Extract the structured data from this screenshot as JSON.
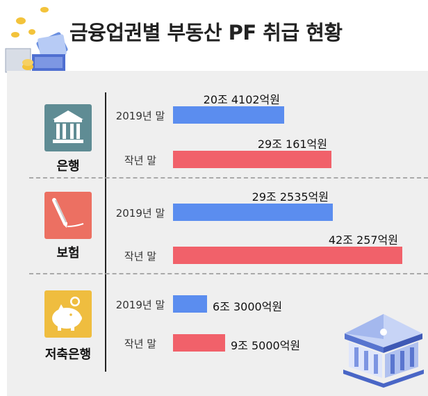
{
  "title": "금융업권별 부동산 PF 취급 현황",
  "colors": {
    "series_2019": "#5b8def",
    "series_last": "#f1616a",
    "panel": "#efefef"
  },
  "icons": [
    "bank-icon",
    "pencil-icon",
    "piggy-bank-icon"
  ],
  "groups": [
    {
      "category": "은행",
      "rows": [
        {
          "period": "2019년 말",
          "value_label": "20조 4102억원",
          "value": 20.4102,
          "series": "2019"
        },
        {
          "period": "작년 말",
          "value_label": "29조 161억원",
          "value": 29.0161,
          "series": "last"
        }
      ]
    },
    {
      "category": "보험",
      "rows": [
        {
          "period": "2019년 말",
          "value_label": "29조 2535억원",
          "value": 29.2535,
          "series": "2019"
        },
        {
          "period": "작년 말",
          "value_label": "42조 257억원",
          "value": 42.0257,
          "series": "last"
        }
      ]
    },
    {
      "category": "저축은행",
      "rows": [
        {
          "period": "2019년 말",
          "value_label": "6조 3000억원",
          "value": 6.3,
          "series": "2019"
        },
        {
          "period": "작년 말",
          "value_label": "9조 5000억원",
          "value": 9.5,
          "series": "last"
        }
      ]
    }
  ],
  "chart_data": {
    "type": "bar",
    "orientation": "horizontal",
    "title": "금융업권별 부동산 PF 취급 현황",
    "categories": [
      "은행",
      "보험",
      "저축은행"
    ],
    "series": [
      {
        "name": "2019년 말",
        "values": [
          20.4102,
          29.2535,
          6.3
        ],
        "labels": [
          "20조 4102억원",
          "29조 2535억원",
          "6조 3000억원"
        ]
      },
      {
        "name": "작년 말",
        "values": [
          29.0161,
          42.0257,
          9.5
        ],
        "labels": [
          "29조 161억원",
          "42조 257억원",
          "9조 5000억원"
        ]
      }
    ],
    "unit": "조원",
    "grid": false,
    "legend": "none"
  }
}
